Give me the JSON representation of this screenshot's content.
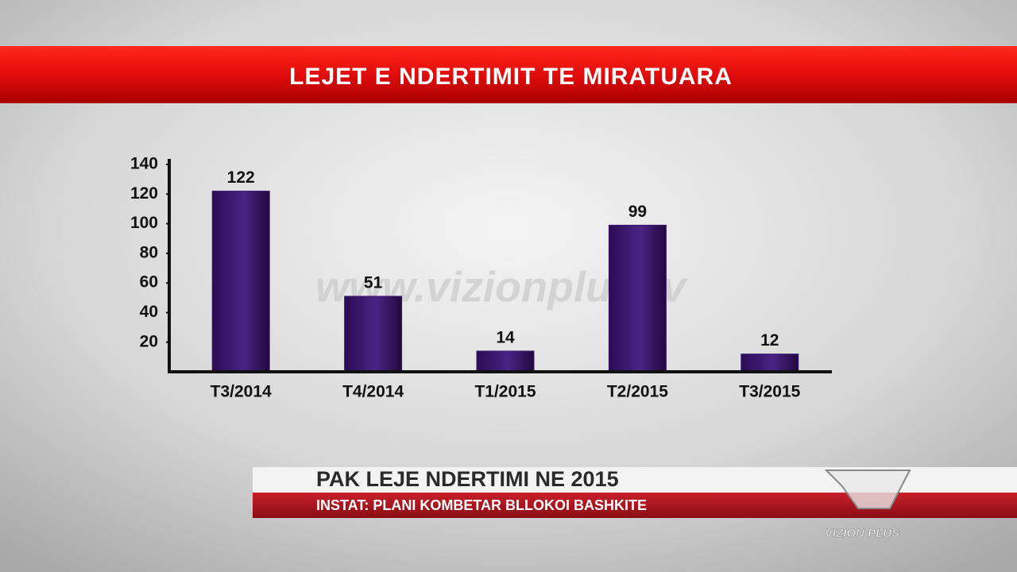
{
  "chart_data": {
    "type": "bar",
    "title": "LEJET E NDERTIMIT TE MIRATUARA",
    "categories": [
      "T3/2014",
      "T4/2014",
      "T1/2015",
      "T2/2015",
      "T3/2015"
    ],
    "values": [
      122,
      51,
      14,
      99,
      12
    ],
    "color": "#3f1a72",
    "ylim": [
      0,
      140
    ],
    "yticks": [
      20,
      40,
      60,
      80,
      100,
      120,
      140
    ]
  },
  "watermark": "www.vizionplus.tv",
  "lower_third": {
    "headline": "PAK LEJE NDERTIMI NE 2015",
    "subline": "INSTAT: PLANI KOMBETAR BLLOKOI BASHKITE"
  },
  "logo": "VIZION PLUS"
}
